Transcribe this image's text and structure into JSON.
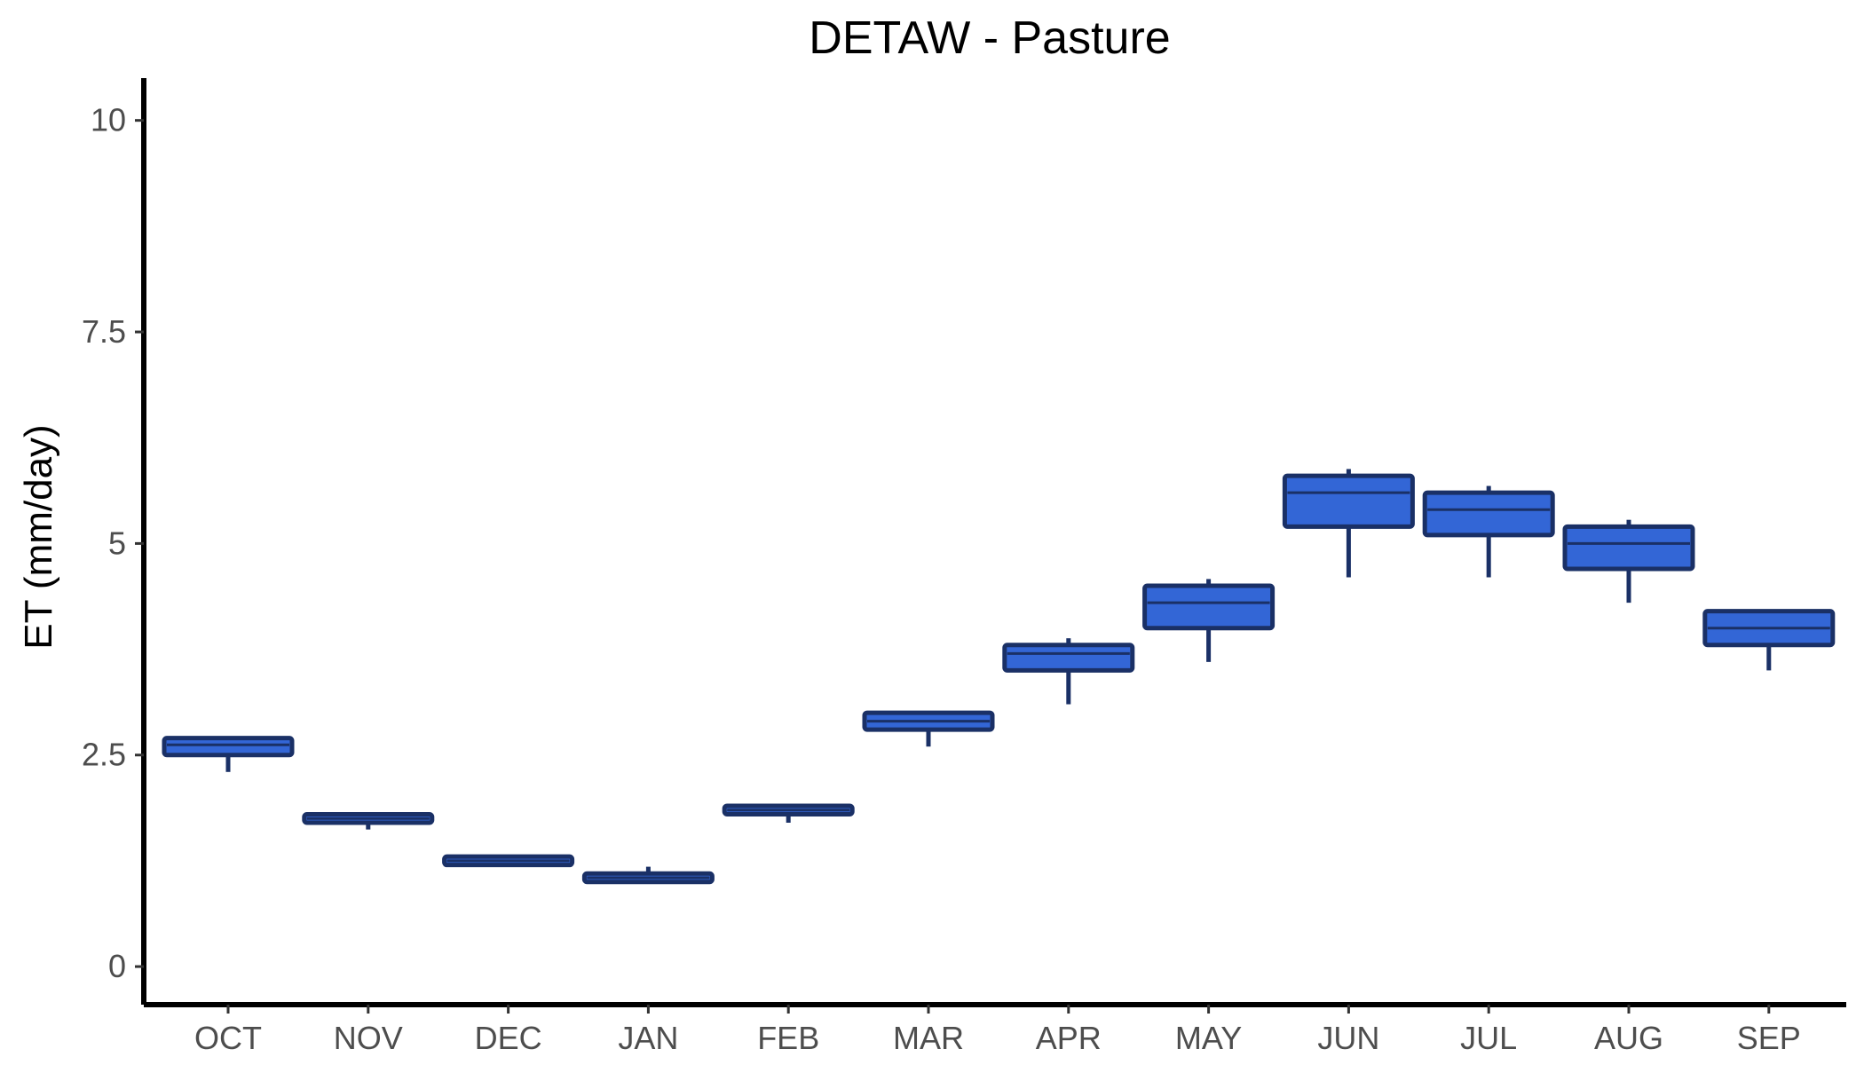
{
  "chart_data": {
    "type": "box",
    "title": "DETAW - Pasture",
    "xlabel": "",
    "ylabel": "ET (mm/day)",
    "ylim": [
      -0.45,
      10.5
    ],
    "yticks": [
      0,
      2.5,
      5,
      7.5,
      10
    ],
    "ytick_labels": [
      "0",
      "2.5",
      "5",
      "7.5",
      "10"
    ],
    "categories": [
      "OCT",
      "NOV",
      "DEC",
      "JAN",
      "FEB",
      "MAR",
      "APR",
      "MAY",
      "JUN",
      "JUL",
      "AUG",
      "SEP"
    ],
    "boxes": [
      {
        "min": 2.3,
        "q1": 2.5,
        "median": 2.62,
        "q3": 2.7,
        "max": 2.7
      },
      {
        "min": 1.62,
        "q1": 1.7,
        "median": 1.75,
        "q3": 1.8,
        "max": 1.8
      },
      {
        "min": 1.2,
        "q1": 1.2,
        "median": 1.25,
        "q3": 1.3,
        "max": 1.3
      },
      {
        "min": 1.0,
        "q1": 1.0,
        "median": 1.05,
        "q3": 1.1,
        "max": 1.18
      },
      {
        "min": 1.7,
        "q1": 1.8,
        "median": 1.85,
        "q3": 1.9,
        "max": 1.9
      },
      {
        "min": 2.6,
        "q1": 2.8,
        "median": 2.9,
        "q3": 3.0,
        "max": 3.0
      },
      {
        "min": 3.1,
        "q1": 3.5,
        "median": 3.7,
        "q3": 3.8,
        "max": 3.88
      },
      {
        "min": 3.6,
        "q1": 4.0,
        "median": 4.3,
        "q3": 4.5,
        "max": 4.58
      },
      {
        "min": 4.6,
        "q1": 5.2,
        "median": 5.6,
        "q3": 5.8,
        "max": 5.88
      },
      {
        "min": 4.6,
        "q1": 5.1,
        "median": 5.4,
        "q3": 5.6,
        "max": 5.68
      },
      {
        "min": 4.3,
        "q1": 4.7,
        "median": 5.0,
        "q3": 5.2,
        "max": 5.28
      },
      {
        "min": 3.5,
        "q1": 3.8,
        "median": 4.0,
        "q3": 4.2,
        "max": 4.2
      }
    ],
    "box_fill_color": "#3366d6",
    "box_outline_color": "#1a3066",
    "grid": false,
    "legend": "none"
  }
}
